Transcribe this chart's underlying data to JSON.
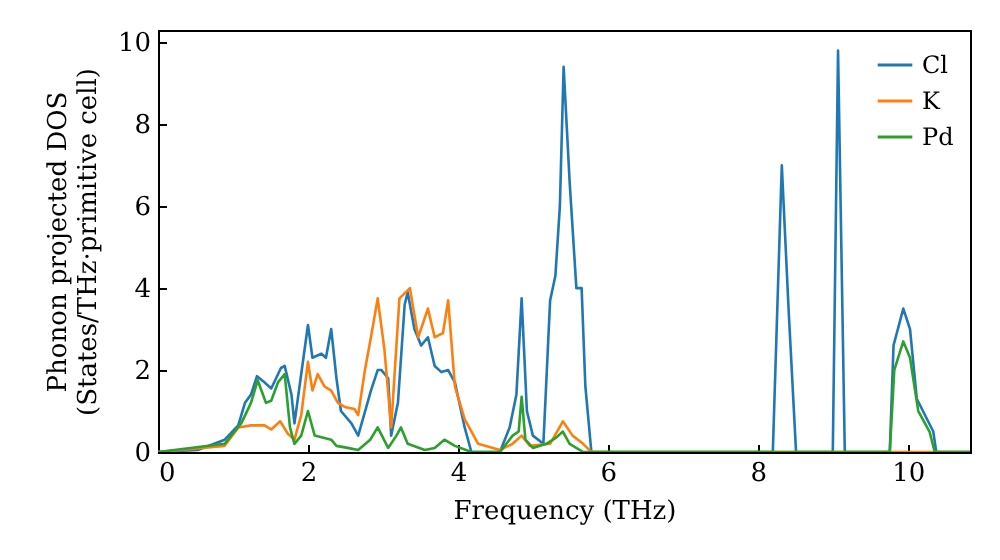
{
  "chart_data": {
    "type": "line",
    "xlabel": "Frequency (THz)",
    "ylabel": "Phonon projected DOS\n(States/THz·primitive cell)",
    "xlim": [
      0,
      10.83
    ],
    "ylim": [
      0,
      10.3
    ],
    "xticks": [
      0,
      2,
      4,
      6,
      8,
      10
    ],
    "yticks": [
      0,
      2,
      4,
      6,
      8,
      10
    ],
    "grid": false,
    "legend": "top right",
    "marker": "none",
    "line_style": "solid",
    "series": [
      {
        "name": "Cl",
        "color": "#1f77b4",
        "x": [
          0,
          0.53,
          0.89,
          1.07,
          1.16,
          1.24,
          1.32,
          1.42,
          1.51,
          1.64,
          1.69,
          1.78,
          1.82,
          1.88,
          2.0,
          2.06,
          2.18,
          2.24,
          2.31,
          2.38,
          2.44,
          2.58,
          2.67,
          2.84,
          2.93,
          2.98,
          3.07,
          3.11,
          3.2,
          3.29,
          3.33,
          3.42,
          3.51,
          3.6,
          3.69,
          3.78,
          3.87,
          3.96,
          4.09,
          4.18,
          4.56,
          4.69,
          4.78,
          4.85,
          4.92,
          5.0,
          5.14,
          5.23,
          5.3,
          5.36,
          5.41,
          5.49,
          5.58,
          5.65,
          5.7,
          5.78,
          8.2,
          8.32,
          8.41,
          8.51,
          9.0,
          9.07,
          9.16,
          9.76,
          9.81,
          9.94,
          10.03,
          10.12,
          10.34,
          10.38,
          10.83
        ],
        "values": [
          0,
          0.05,
          0.3,
          0.65,
          1.2,
          1.4,
          1.85,
          1.7,
          1.55,
          2.05,
          2.1,
          1.4,
          0.7,
          1.5,
          3.1,
          2.3,
          2.4,
          2.3,
          3.0,
          1.8,
          1.0,
          0.7,
          0.4,
          1.5,
          2.0,
          2.0,
          1.8,
          0.4,
          1.2,
          3.6,
          3.9,
          3.0,
          2.6,
          2.8,
          2.1,
          1.95,
          2.0,
          1.7,
          0.6,
          0,
          0,
          0.6,
          1.4,
          3.75,
          1.0,
          0.4,
          0.2,
          3.7,
          4.3,
          6.0,
          9.4,
          6.6,
          4.0,
          4.0,
          1.6,
          0,
          0,
          7.0,
          3.5,
          0,
          0,
          9.8,
          0,
          0,
          2.6,
          3.5,
          3.0,
          1.3,
          0.5,
          0,
          0
        ]
      },
      {
        "name": "K",
        "color": "#ff7f0e",
        "x": [
          0,
          0.89,
          1.07,
          1.24,
          1.42,
          1.51,
          1.63,
          1.73,
          1.82,
          1.91,
          2.0,
          2.06,
          2.13,
          2.22,
          2.31,
          2.4,
          2.49,
          2.62,
          2.67,
          2.76,
          2.84,
          2.93,
          3.02,
          3.11,
          3.22,
          3.36,
          3.47,
          3.6,
          3.69,
          3.8,
          3.87,
          3.96,
          4.09,
          4.27,
          4.56,
          4.73,
          4.85,
          4.96,
          5.23,
          5.4,
          5.53,
          5.67,
          5.78,
          10.83
        ],
        "values": [
          0,
          0.15,
          0.6,
          0.65,
          0.65,
          0.55,
          0.75,
          0.45,
          0.3,
          0.9,
          2.2,
          1.5,
          1.9,
          1.6,
          1.5,
          1.2,
          1.1,
          1.05,
          0.9,
          2.0,
          2.8,
          3.75,
          2.5,
          0.6,
          3.75,
          4.0,
          2.8,
          3.5,
          2.8,
          2.9,
          3.7,
          1.6,
          0.8,
          0.2,
          0.05,
          0.2,
          0.4,
          0.15,
          0.2,
          0.75,
          0.4,
          0.2,
          0,
          0
        ]
      },
      {
        "name": "Pd",
        "color": "#2ca02c",
        "x": [
          0,
          0.89,
          1.11,
          1.24,
          1.33,
          1.44,
          1.51,
          1.6,
          1.69,
          1.76,
          1.82,
          1.91,
          2.0,
          2.09,
          2.31,
          2.38,
          2.53,
          2.67,
          2.83,
          2.93,
          3.07,
          3.18,
          3.24,
          3.33,
          3.56,
          3.69,
          3.82,
          3.96,
          4.18,
          4.56,
          4.73,
          4.81,
          4.85,
          4.9,
          5.0,
          5.18,
          5.31,
          5.4,
          5.49,
          5.67,
          9.76,
          9.82,
          9.94,
          10.03,
          10.14,
          10.29,
          10.36,
          10.83
        ],
        "values": [
          0,
          0.2,
          0.7,
          1.2,
          1.75,
          1.2,
          1.25,
          1.7,
          1.9,
          0.6,
          0.2,
          0.4,
          1.0,
          0.4,
          0.3,
          0.15,
          0.1,
          0.05,
          0.3,
          0.6,
          0.1,
          0.4,
          0.6,
          0.2,
          0.05,
          0.1,
          0.3,
          0.15,
          0,
          0,
          0.4,
          0.5,
          1.35,
          0.3,
          0.1,
          0.2,
          0.35,
          0.5,
          0.2,
          0,
          0,
          2.0,
          2.7,
          2.3,
          1.0,
          0.5,
          0,
          0
        ]
      }
    ]
  }
}
